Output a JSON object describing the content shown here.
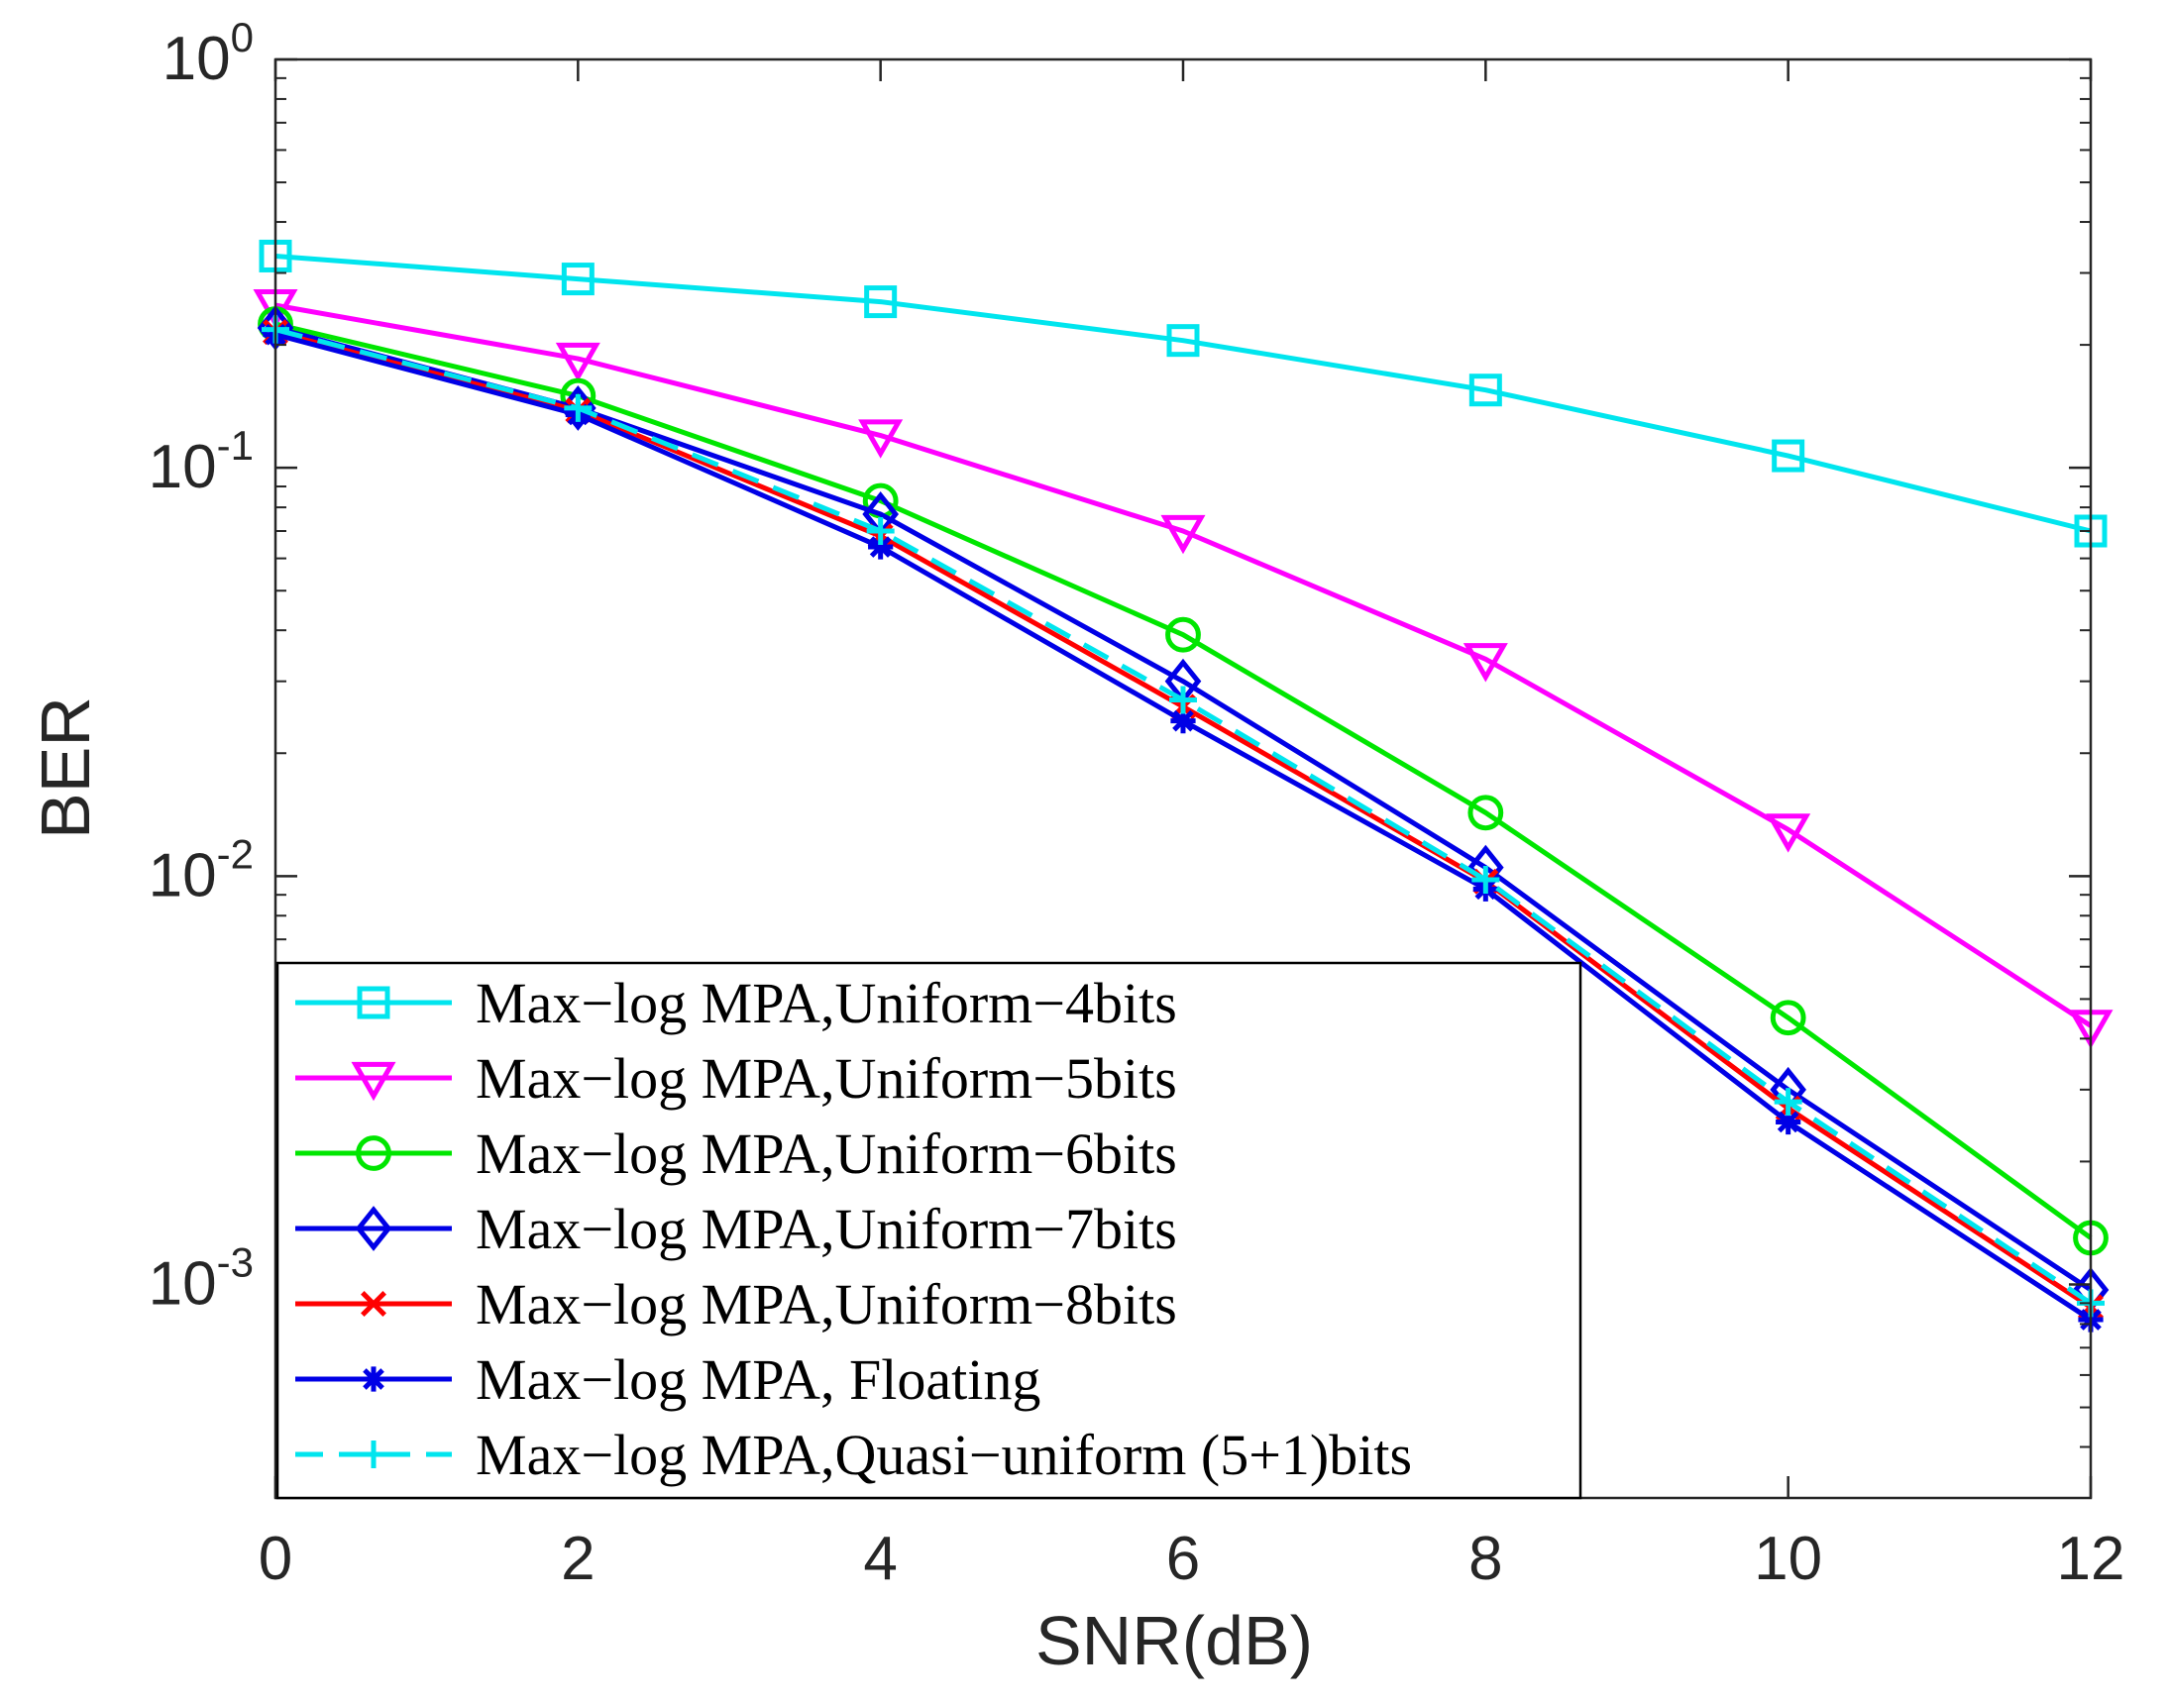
{
  "chart_data": {
    "type": "line",
    "xlabel": "SNR(dB)",
    "ylabel": "BER",
    "xlim": [
      0,
      12
    ],
    "ylim": [
      0.0003,
      1
    ],
    "y_scale": "log",
    "x_ticks": [
      0,
      2,
      4,
      6,
      8,
      10,
      12
    ],
    "x_tick_labels": [
      "0",
      "2",
      "4",
      "6",
      "8",
      "10",
      "12"
    ],
    "y_ticks": [
      {
        "value": 1,
        "base": "10",
        "exp": "0"
      },
      {
        "value": 0.1,
        "base": "10",
        "exp": "-1"
      },
      {
        "value": 0.01,
        "base": "10",
        "exp": "-2"
      },
      {
        "value": 0.001,
        "base": "10",
        "exp": "-3"
      }
    ],
    "grid": false,
    "legend_position": "bottom-left",
    "x": [
      0,
      2,
      4,
      6,
      8,
      10,
      12
    ],
    "series": [
      {
        "name": "Max−log MPA,Uniform−4bits",
        "color": "#00e5ee",
        "marker": "square",
        "dash": false,
        "values": [
          0.33,
          0.29,
          0.255,
          0.205,
          0.155,
          0.107,
          0.07
        ]
      },
      {
        "name": "Max−log MPA,Uniform−5bits",
        "color": "#ff00ff",
        "marker": "triangle-down",
        "dash": false,
        "values": [
          0.25,
          0.185,
          0.12,
          0.07,
          0.034,
          0.013,
          0.0043
        ]
      },
      {
        "name": "Max−log MPA,Uniform−6bits",
        "color": "#00e600",
        "marker": "circle",
        "dash": false,
        "values": [
          0.225,
          0.15,
          0.083,
          0.039,
          0.0143,
          0.0045,
          0.0013
        ]
      },
      {
        "name": "Max−log MPA,Uniform−7bits",
        "color": "#0000e6",
        "marker": "diamond",
        "dash": false,
        "values": [
          0.22,
          0.14,
          0.077,
          0.03,
          0.0105,
          0.003,
          0.00097
        ]
      },
      {
        "name": "Max−log MPA,Uniform−8bits",
        "color": "#ff0000",
        "marker": "x",
        "dash": false,
        "values": [
          0.215,
          0.138,
          0.068,
          0.026,
          0.0097,
          0.0027,
          0.00088
        ]
      },
      {
        "name": "Max−log MPA, Floating",
        "color": "#0000e6",
        "marker": "asterisk",
        "dash": false,
        "values": [
          0.212,
          0.135,
          0.064,
          0.024,
          0.0093,
          0.0025,
          0.00082
        ]
      },
      {
        "name": "Max−log MPA,Quasi−uniform (5+1)bits",
        "color": "#00e5ee",
        "marker": "plus",
        "dash": true,
        "values": [
          0.218,
          0.14,
          0.07,
          0.027,
          0.0098,
          0.0028,
          0.0009
        ]
      }
    ]
  }
}
